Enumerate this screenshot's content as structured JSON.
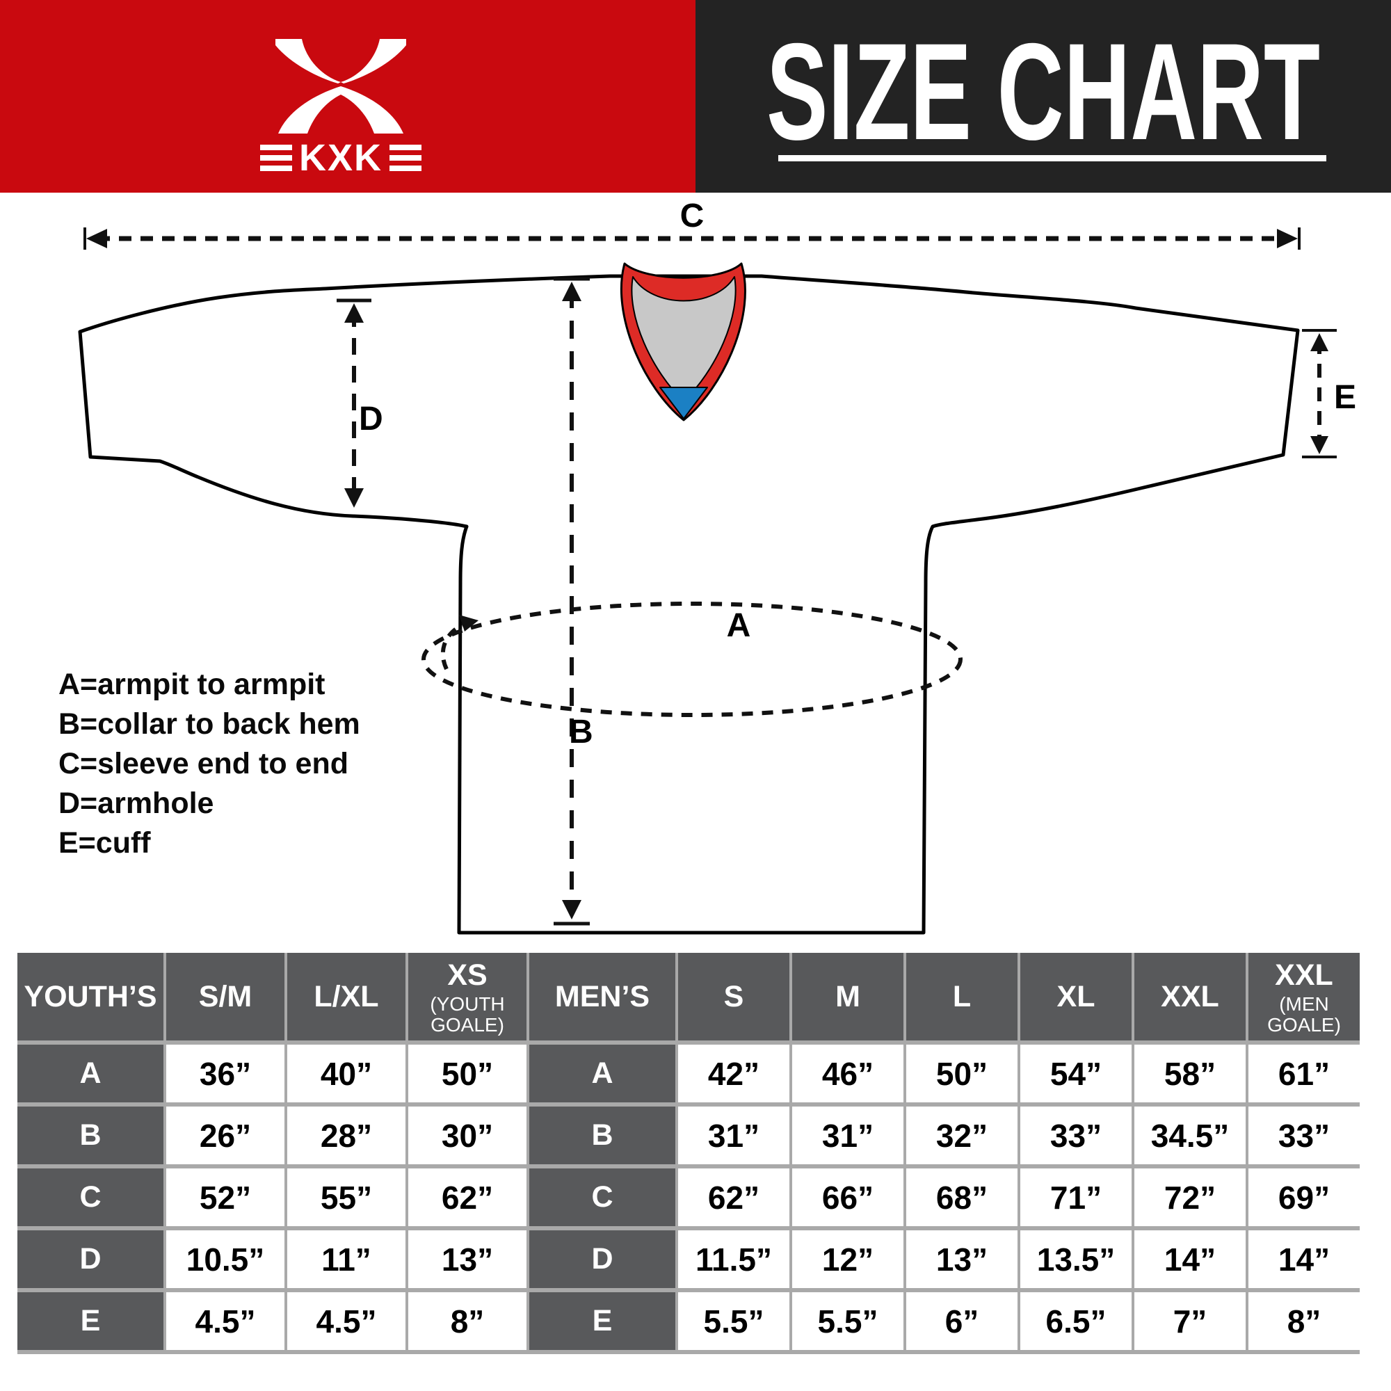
{
  "banner": {
    "brand": "KXK",
    "title": "SIZE CHART",
    "brand_bg": "#C9090F",
    "title_bg": "#232323"
  },
  "diagram": {
    "measure_labels": {
      "a": "A",
      "b": "B",
      "c": "C",
      "d": "D",
      "e": "E"
    },
    "legend": [
      "A=armpit to armpit",
      "B=collar to back hem",
      "C=sleeve end to end",
      "D=armhole",
      "E=cuff"
    ],
    "collar_colors": {
      "band": "#DD2B26",
      "inner": "#C8C8C8",
      "tie": "#1B80C4"
    }
  },
  "size_table": {
    "columns": [
      {
        "main": "YOUTH’S",
        "sub": ""
      },
      {
        "main": "S/M",
        "sub": ""
      },
      {
        "main": "L/XL",
        "sub": ""
      },
      {
        "main": "XS",
        "sub": "(YOUTH GOALE)"
      },
      {
        "main": "MEN’S",
        "sub": ""
      },
      {
        "main": "S",
        "sub": ""
      },
      {
        "main": "M",
        "sub": ""
      },
      {
        "main": "L",
        "sub": ""
      },
      {
        "main": "XL",
        "sub": ""
      },
      {
        "main": "XXL",
        "sub": ""
      },
      {
        "main": "XXL",
        "sub": "(MEN GOALE)"
      }
    ],
    "rows": [
      {
        "letter": "A",
        "youth": [
          "36”",
          "40”",
          "50”"
        ],
        "men": [
          "42”",
          "46”",
          "50”",
          "54”",
          "58”",
          "61”"
        ]
      },
      {
        "letter": "B",
        "youth": [
          "26”",
          "28”",
          "30”"
        ],
        "men": [
          "31”",
          "31”",
          "32”",
          "33”",
          "34.5”",
          "33”"
        ]
      },
      {
        "letter": "C",
        "youth": [
          "52”",
          "55”",
          "62”"
        ],
        "men": [
          "62”",
          "66”",
          "68”",
          "71”",
          "72”",
          "69”"
        ]
      },
      {
        "letter": "D",
        "youth": [
          "10.5”",
          "11”",
          "13”"
        ],
        "men": [
          "11.5”",
          "12”",
          "13”",
          "13.5”",
          "14”",
          "14”"
        ]
      },
      {
        "letter": "E",
        "youth": [
          "4.5”",
          "4.5”",
          "8”"
        ],
        "men": [
          "5.5”",
          "5.5”",
          "6”",
          "6.5”",
          "7”",
          "8”"
        ]
      }
    ]
  }
}
